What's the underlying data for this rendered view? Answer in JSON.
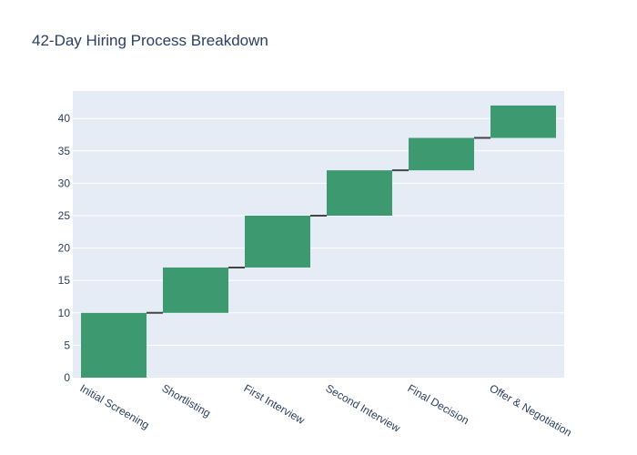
{
  "chart_data": {
    "type": "bar",
    "subtype": "waterfall",
    "title": "42-Day Hiring Process Breakdown",
    "xlabel": "",
    "ylabel": "",
    "categories": [
      "Initial Screening",
      "Shortlisting",
      "First Interview",
      "Second Interview",
      "Final Decision",
      "Offer & Negotiation"
    ],
    "values": [
      10,
      7,
      8,
      7,
      5,
      5
    ],
    "cumulative": [
      10,
      17,
      25,
      32,
      37,
      42
    ],
    "ylim": [
      0,
      44
    ],
    "yticks": [
      0,
      5,
      10,
      15,
      20,
      25,
      30,
      35,
      40
    ],
    "grid": true,
    "legend": "none",
    "colors": {
      "bar": "#3d9970",
      "connector": "#444444",
      "plot_background": "#e5ecf6",
      "grid": "#ffffff",
      "text": "#2a3f5f"
    }
  }
}
